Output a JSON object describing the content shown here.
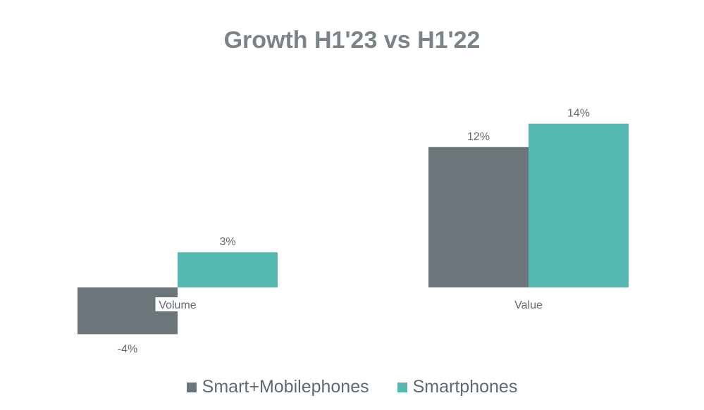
{
  "chart_data": {
    "type": "bar",
    "title": "Growth H1'23 vs H1'22",
    "categories": [
      "Volume",
      "Value"
    ],
    "series": [
      {
        "name": "Smart+Mobilephones",
        "values": [
          -4,
          12
        ],
        "labels": [
          "-4%",
          "12%"
        ],
        "color": "#6b757a"
      },
      {
        "name": "Smartphones",
        "values": [
          3,
          14
        ],
        "labels": [
          "3%",
          "14%"
        ],
        "color": "#55b8b1"
      }
    ],
    "xlabel": "",
    "ylabel": "",
    "ylim": [
      -5,
      14
    ],
    "grid": false,
    "legend": "bottom"
  }
}
